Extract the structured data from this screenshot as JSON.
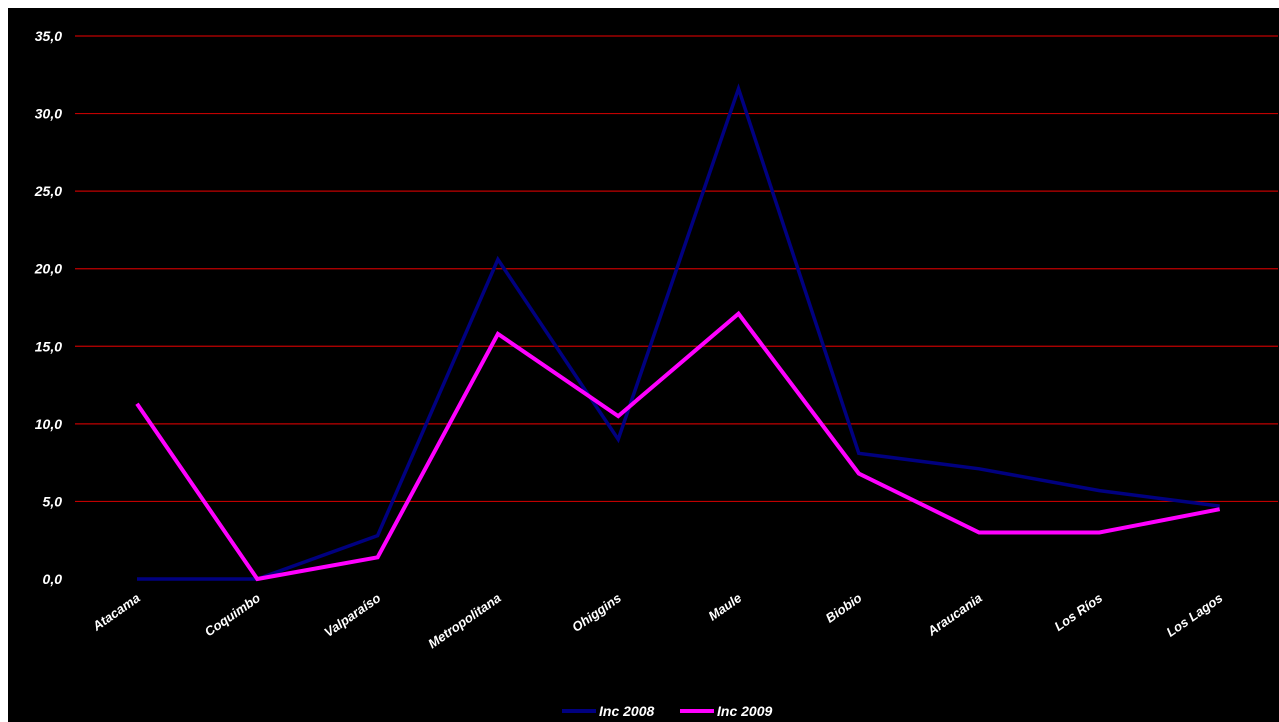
{
  "chart_data": {
    "type": "line",
    "categories": [
      "Atacama",
      "Coquimbo",
      "Valparaíso",
      "Metropolitana",
      "Ohiggins",
      "Maule",
      "Biobio",
      "Araucania",
      "Los Ríos",
      "Los Lagos"
    ],
    "series": [
      {
        "name": "Inc 2008",
        "color": "#000080",
        "values": [
          0.0,
          0.0,
          2.8,
          20.6,
          9.0,
          31.6,
          8.1,
          7.1,
          5.7,
          4.7
        ]
      },
      {
        "name": "Inc 2009",
        "color": "#ff00ff",
        "values": [
          11.3,
          0.0,
          1.4,
          15.8,
          10.5,
          17.1,
          6.8,
          3.0,
          3.0,
          4.5
        ]
      }
    ],
    "ylim": [
      0,
      35
    ],
    "yticks": [
      "0,0",
      "5,0",
      "10,0",
      "15,0",
      "20,0",
      "25,0",
      "30,0",
      "35,0"
    ],
    "ytick_values": [
      0,
      5,
      10,
      15,
      20,
      25,
      30,
      35
    ],
    "gridlines": true,
    "gridline_color": "#c00000",
    "background_color": "#000000",
    "text_color": "#ffffff",
    "legend_position": "bottom-center"
  }
}
